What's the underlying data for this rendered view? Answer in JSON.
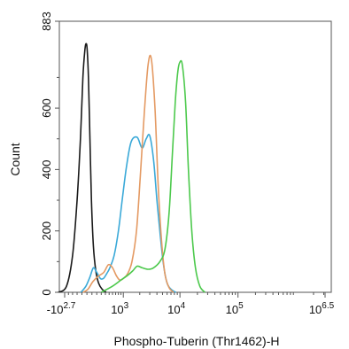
{
  "chart_data": {
    "type": "line",
    "title": "",
    "xlabel": "Phospho-Tuberin (Thr1462)-H",
    "ylabel": "Count",
    "ylim": [
      0,
      883
    ],
    "x_scale": "logicle",
    "x_ticks": [
      {
        "value": -501,
        "base": "-10",
        "exp": "2.7"
      },
      {
        "value": 1000,
        "base": "10",
        "exp": "3"
      },
      {
        "value": 10000,
        "base": "10",
        "exp": "4"
      },
      {
        "value": 100000,
        "base": "10",
        "exp": "5"
      },
      {
        "value": 3162278,
        "base": "10",
        "exp": "6.5"
      }
    ],
    "y_ticks": [
      {
        "value": 0,
        "label": "0"
      },
      {
        "value": 200,
        "label": "200"
      },
      {
        "value": 400,
        "label": "400"
      },
      {
        "value": 600,
        "label": "600"
      },
      {
        "value": 883,
        "label": "883"
      }
    ],
    "grid": false,
    "legend": "none",
    "series": [
      {
        "color": "#1a1a1a",
        "points": [
          [
            -700,
            0
          ],
          [
            -450,
            20
          ],
          [
            -300,
            120
          ],
          [
            -200,
            300
          ],
          [
            -130,
            500
          ],
          [
            -80,
            700
          ],
          [
            -40,
            790
          ],
          [
            -15,
            810
          ],
          [
            5,
            790
          ],
          [
            30,
            700
          ],
          [
            60,
            500
          ],
          [
            90,
            300
          ],
          [
            130,
            150
          ],
          [
            180,
            70
          ],
          [
            240,
            30
          ],
          [
            320,
            10
          ],
          [
            420,
            0
          ]
        ]
      },
      {
        "color": "#3aa9d8",
        "points": [
          [
            -120,
            0
          ],
          [
            -20,
            20
          ],
          [
            60,
            50
          ],
          [
            130,
            80
          ],
          [
            200,
            65
          ],
          [
            280,
            45
          ],
          [
            350,
            45
          ],
          [
            430,
            60
          ],
          [
            520,
            80
          ],
          [
            650,
            120
          ],
          [
            800,
            200
          ],
          [
            950,
            300
          ],
          [
            1150,
            410
          ],
          [
            1400,
            490
          ],
          [
            1800,
            505
          ],
          [
            2200,
            470
          ],
          [
            2600,
            500
          ],
          [
            3000,
            510
          ],
          [
            3500,
            430
          ],
          [
            4000,
            300
          ],
          [
            4600,
            180
          ],
          [
            5200,
            90
          ],
          [
            6000,
            30
          ],
          [
            7200,
            8
          ],
          [
            8500,
            0
          ]
        ]
      },
      {
        "color": "#e49a63",
        "points": [
          [
            -80,
            0
          ],
          [
            20,
            10
          ],
          [
            120,
            35
          ],
          [
            230,
            52
          ],
          [
            360,
            65
          ],
          [
            480,
            90
          ],
          [
            600,
            80
          ],
          [
            720,
            55
          ],
          [
            850,
            40
          ],
          [
            1000,
            45
          ],
          [
            1200,
            60
          ],
          [
            1450,
            100
          ],
          [
            1750,
            200
          ],
          [
            2050,
            380
          ],
          [
            2400,
            580
          ],
          [
            2800,
            740
          ],
          [
            3200,
            760
          ],
          [
            3700,
            600
          ],
          [
            4200,
            350
          ],
          [
            4800,
            170
          ],
          [
            5500,
            60
          ],
          [
            6500,
            15
          ],
          [
            7800,
            0
          ]
        ]
      },
      {
        "color": "#4cc94c",
        "points": [
          [
            300,
            0
          ],
          [
            600,
            20
          ],
          [
            900,
            40
          ],
          [
            1200,
            55
          ],
          [
            1500,
            70
          ],
          [
            1800,
            85
          ],
          [
            2200,
            80
          ],
          [
            2800,
            75
          ],
          [
            3500,
            80
          ],
          [
            4500,
            100
          ],
          [
            5500,
            140
          ],
          [
            6500,
            260
          ],
          [
            7400,
            450
          ],
          [
            8300,
            620
          ],
          [
            9200,
            720
          ],
          [
            10000,
            750
          ],
          [
            11000,
            740
          ],
          [
            12500,
            620
          ],
          [
            14000,
            400
          ],
          [
            16000,
            200
          ],
          [
            18500,
            80
          ],
          [
            22000,
            20
          ],
          [
            27000,
            0
          ]
        ]
      }
    ]
  }
}
